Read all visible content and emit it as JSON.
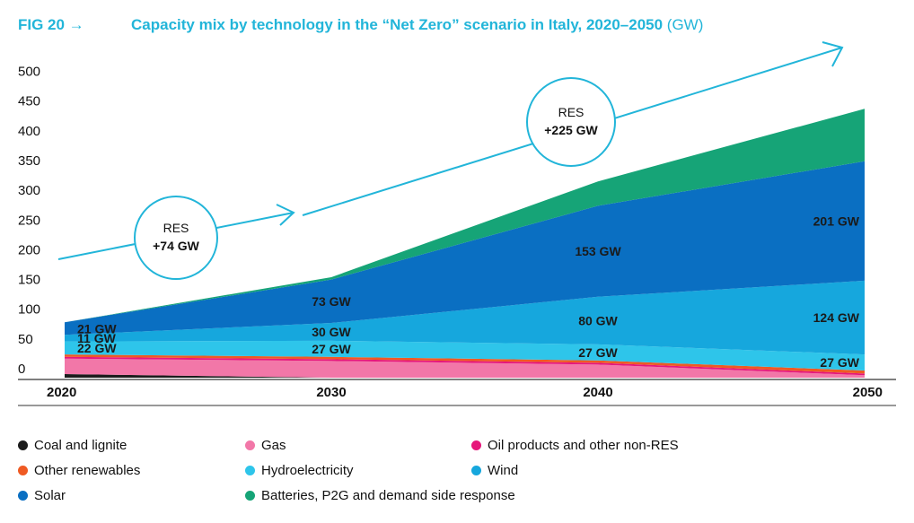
{
  "header": {
    "fig_label": "FIG 20 →",
    "title": "Capacity mix by technology in the “Net Zero” scenario in Italy, 2020–2050",
    "unit": "(GW)"
  },
  "chart_data": {
    "type": "area",
    "stacked": true,
    "title": "Capacity mix by technology in the “Net Zero” scenario in Italy, 2020–2050",
    "unit": "GW",
    "x": [
      2020,
      2030,
      2040,
      2050
    ],
    "x_tick_labels": [
      "2020",
      "2030",
      "2040",
      "2050"
    ],
    "y_tick_labels": [
      "0",
      "50",
      "100",
      "150",
      "200",
      "250",
      "300",
      "350",
      "400",
      "450",
      "500"
    ],
    "ylim": [
      0,
      500
    ],
    "legend_position": "bottom",
    "series": [
      {
        "name": "Coal and lignite",
        "color": "#1b1b1b",
        "values": [
          6,
          0,
          0,
          0
        ]
      },
      {
        "name": "Gas",
        "color": "#f277a8",
        "values": [
          26,
          28,
          22,
          4
        ]
      },
      {
        "name": "Oil products and other non-RES",
        "color": "#e6177b",
        "values": [
          3,
          3,
          3,
          3
        ]
      },
      {
        "name": "Other renewables",
        "color": "#ef5a23",
        "values": [
          4,
          4,
          4,
          5
        ]
      },
      {
        "name": "Hydroelectricity",
        "color": "#2ec5ea",
        "values": [
          22,
          27,
          27,
          27
        ]
      },
      {
        "name": "Wind",
        "color": "#16a7dd",
        "values": [
          11,
          30,
          80,
          124
        ]
      },
      {
        "name": "Solar",
        "color": "#0a6fc2",
        "values": [
          21,
          73,
          153,
          201
        ]
      },
      {
        "name": "Batteries, P2G and demand side response",
        "color": "#16a477",
        "values": [
          0,
          4,
          41,
          88
        ]
      }
    ],
    "data_labels": [
      {
        "text": "22 GW",
        "series": "Hydroelectricity",
        "x": 2020
      },
      {
        "text": "11 GW",
        "series": "Wind",
        "x": 2020
      },
      {
        "text": "21 GW",
        "series": "Solar",
        "x": 2020
      },
      {
        "text": "27 GW",
        "series": "Hydroelectricity",
        "x": 2030
      },
      {
        "text": "30 GW",
        "series": "Wind",
        "x": 2030
      },
      {
        "text": "73 GW",
        "series": "Solar",
        "x": 2030
      },
      {
        "text": "27 GW",
        "series": "Hydroelectricity",
        "x": 2040
      },
      {
        "text": "80 GW",
        "series": "Wind",
        "x": 2040
      },
      {
        "text": "153 GW",
        "series": "Solar",
        "x": 2040
      },
      {
        "text": "27 GW",
        "series": "Hydroelectricity",
        "x": 2050
      },
      {
        "text": "124 GW",
        "series": "Wind",
        "x": 2050
      },
      {
        "text": "201 GW",
        "series": "Solar",
        "x": 2050
      }
    ],
    "annotations": [
      {
        "line1": "RES",
        "line2": "+74 GW",
        "period": "2020–2030"
      },
      {
        "line1": "RES",
        "line2": "+225 GW",
        "period": "2030–2050"
      }
    ],
    "arrow_color": "#22b5d9"
  }
}
